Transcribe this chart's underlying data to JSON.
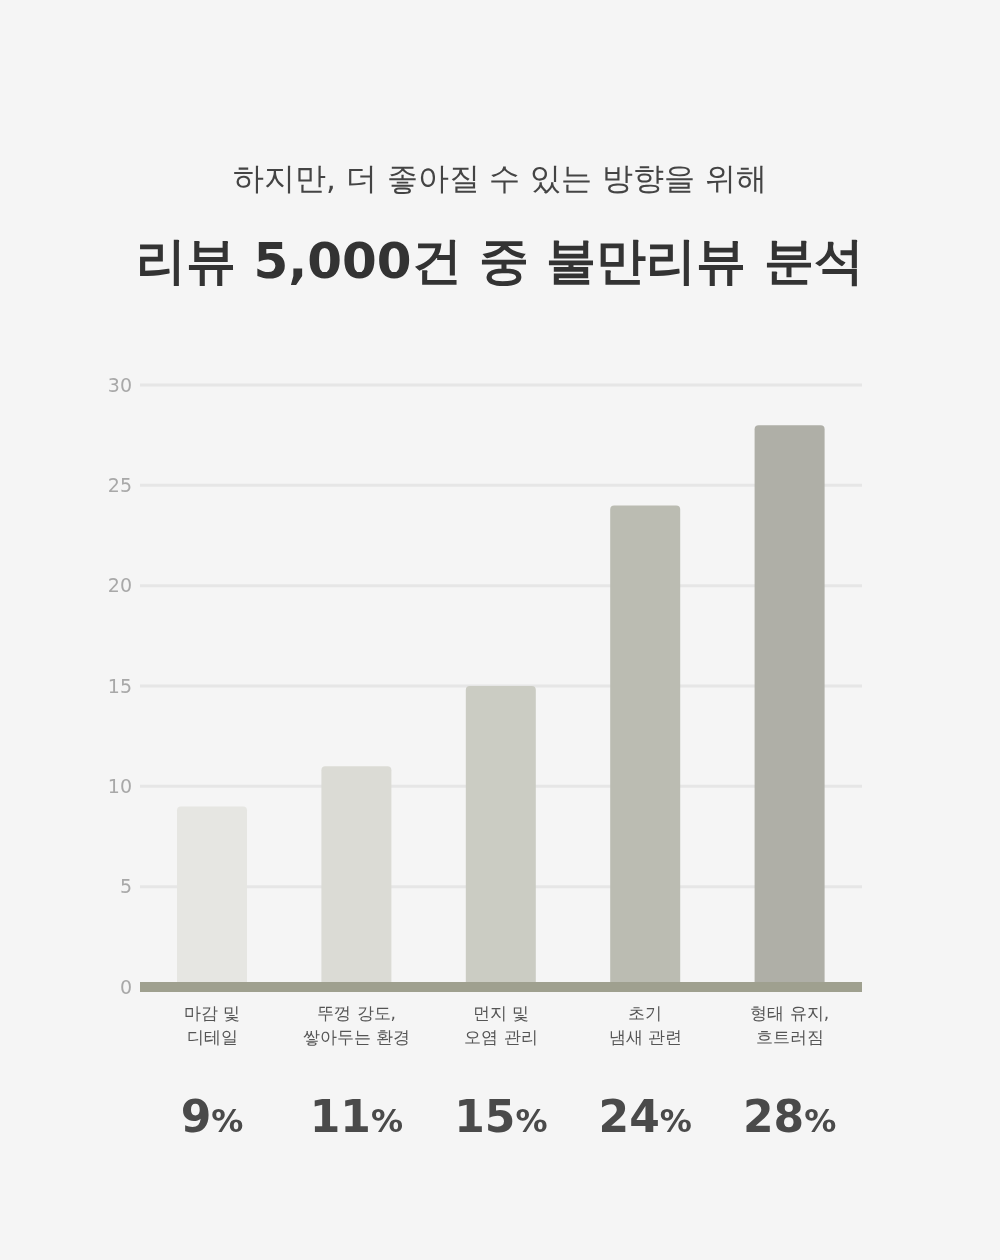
{
  "chart_data": {
    "type": "bar",
    "subtitle": "하지만, 더 좋아질 수 있는 방향을 위해",
    "title": "리뷰 5,000건 중 불만리뷰 분석",
    "categories": [
      "마감 및\n디테일",
      "뚜껑 강도,\n쌓아두는 환경",
      "먼지 및\n오염 관리",
      "초기\n냄새 관련",
      "형태 유지,\n흐트러짐"
    ],
    "values": [
      9,
      11,
      15,
      24,
      28
    ],
    "colors": [
      "#e6e6e2",
      "#dbdbd5",
      "#cbccc3",
      "#bbbcb2",
      "#afafa7"
    ],
    "value_labels": [
      "9%",
      "11%",
      "15%",
      "24%",
      "28%"
    ],
    "ylim": [
      0,
      30
    ],
    "yticks": [
      0,
      5,
      10,
      15,
      20,
      25,
      30
    ],
    "grid": "y"
  }
}
